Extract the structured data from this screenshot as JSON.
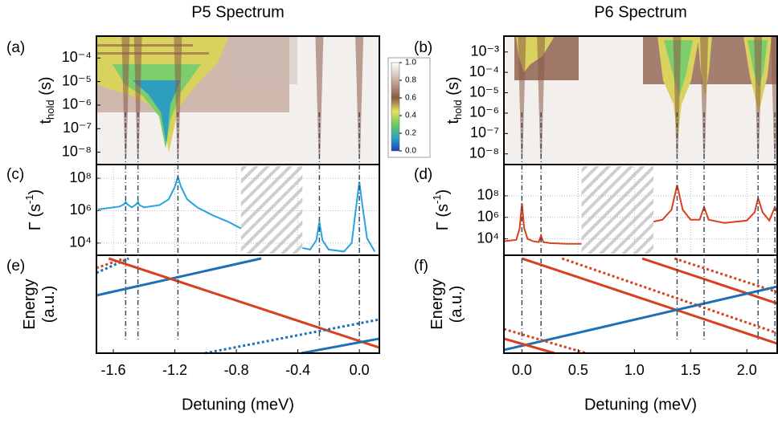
{
  "chart_data": [
    {
      "type": "heatmap",
      "title": "P5 Spectrum",
      "title_color": "#2a86c8",
      "panel": "(a)",
      "ylabel": {
        "text": "t",
        "sub": "hold",
        "rest": " (s)"
      },
      "log": true,
      "xlim": [
        -1.71,
        0.13
      ],
      "ylim": [
        3e-09,
        0.00085
      ],
      "yticks": [
        {
          "value": 1e-08,
          "label": "10⁻⁸"
        },
        {
          "value": 1e-07,
          "label": "10⁻⁷"
        },
        {
          "value": 1e-06,
          "label": "10⁻⁶"
        },
        {
          "value": 1e-05,
          "label": "10⁻⁵"
        },
        {
          "value": 0.0001,
          "label": "10⁻⁴"
        }
      ],
      "resonances": [
        -1.52,
        -1.44,
        -1.18,
        -0.26,
        0.0
      ],
      "colorbar": {
        "lim": [
          0,
          1
        ],
        "ticks": [
          {
            "value": 0,
            "label": "0.0"
          },
          0.2,
          0.4,
          0.6,
          0.8,
          {
            "value": 1,
            "label": "1.0"
          }
        ]
      }
    },
    {
      "type": "heatmap",
      "title": "P6 Spectrum",
      "title_color": "#e2541f",
      "panel": "(b)",
      "ylabel": {
        "text": "t",
        "sub": "hold",
        "rest": " (s)"
      },
      "log": true,
      "xlim": [
        -0.16,
        2.27
      ],
      "ylim": [
        3e-09,
        0.006
      ],
      "yticks": [
        {
          "value": 1e-08,
          "label": "10⁻⁸"
        },
        {
          "value": 1e-07,
          "label": "10⁻⁷"
        },
        {
          "value": 1e-06,
          "label": "10⁻⁶"
        },
        {
          "value": 1e-05,
          "label": "10⁻⁵"
        },
        {
          "value": 0.0001,
          "label": "10⁻⁴"
        },
        {
          "value": 0.001,
          "label": "10⁻³"
        }
      ],
      "resonances": [
        0.0,
        0.17,
        1.38,
        1.62,
        2.1,
        2.25
      ]
    },
    {
      "type": "line",
      "panel": "(c)",
      "color": "#25a4e0",
      "tick_color": "#2196d8",
      "ylabel": {
        "text": "Γ (s",
        "sup": "-1",
        "rest": ")"
      },
      "log": true,
      "grid": true,
      "xlim": [
        -1.71,
        0.13
      ],
      "ylim": [
        1778,
        700000000
      ],
      "xgrid": [
        -1.6,
        -1.2,
        -0.8,
        -0.4,
        0.0
      ],
      "yticks": [
        {
          "value": 10000,
          "label": "10⁴"
        },
        {
          "value": 1000000,
          "label": "10⁶"
        },
        {
          "value": 100000000,
          "label": "10⁸"
        }
      ],
      "excluded_range": [
        -0.77,
        -0.37
      ],
      "x": [
        -1.7,
        -1.62,
        -1.56,
        -1.53,
        -1.52,
        -1.51,
        -1.48,
        -1.45,
        -1.44,
        -1.43,
        -1.4,
        -1.3,
        -1.24,
        -1.2,
        -1.18,
        -1.16,
        -1.12,
        -1.05,
        -0.95,
        -0.85,
        -0.77,
        null,
        -0.37,
        -0.32,
        -0.28,
        -0.26,
        -0.24,
        -0.2,
        -0.1,
        -0.05,
        -0.02,
        0.0,
        0.02,
        0.05,
        0.1
      ],
      "values": [
        1200000,
        1500000,
        1800000,
        2500000,
        3500000,
        2500000,
        1600000,
        2500000,
        3500000,
        2200000,
        1600000,
        2200000,
        5000000,
        30000000,
        120000000,
        30000000,
        5000000,
        1500000,
        500000,
        200000,
        80000,
        null,
        5000,
        4000,
        15000,
        200000,
        15000,
        4000,
        3000,
        10000,
        2000000,
        60000000,
        2000000,
        20000,
        3000
      ]
    },
    {
      "type": "line",
      "panel": "(d)",
      "color": "#d9411e",
      "tick_color": "#e2541f",
      "ylabel": {
        "text": "Γ (s",
        "sup": "-1",
        "rest": ")"
      },
      "log": true,
      "grid": true,
      "xlim": [
        -0.16,
        2.27
      ],
      "ylim": [
        300,
        80000000000
      ],
      "xgrid": [
        0.0,
        0.5,
        1.0,
        1.5,
        2.0
      ],
      "yticks": [
        {
          "value": 10000,
          "label": "10⁴"
        },
        {
          "value": 1000000,
          "label": "10⁶"
        },
        {
          "value": 100000000,
          "label": "10⁸"
        }
      ],
      "excluded_range": [
        0.53,
        1.17
      ],
      "x": [
        -0.16,
        -0.05,
        -0.02,
        0.0,
        0.02,
        0.05,
        0.1,
        0.15,
        0.17,
        0.19,
        0.25,
        0.4,
        0.53,
        null,
        1.17,
        1.25,
        1.33,
        1.38,
        1.43,
        1.5,
        1.58,
        1.62,
        1.66,
        1.8,
        2.0,
        2.07,
        2.1,
        2.14,
        2.2,
        2.25,
        2.27
      ],
      "values": [
        6000,
        8000,
        100000,
        20000000,
        100000,
        10000,
        6000,
        5000,
        20000,
        5000,
        4000,
        3500,
        3500,
        null,
        400000,
        600000,
        5000000,
        1000000000,
        5000000,
        600000,
        600000,
        9000000,
        600000,
        300000,
        500000,
        3000000,
        60000000,
        3000000,
        500000,
        9000000,
        3000000
      ]
    },
    {
      "type": "energy",
      "panel": "(e)",
      "ylabel": [
        "Energy",
        "(a.u.)"
      ],
      "xlabel": "Detuning (meV)",
      "xlim": [
        -1.71,
        0.13
      ],
      "ylim": [
        0,
        1
      ],
      "xticks": [
        -1.6,
        -1.2,
        -0.8,
        -0.4,
        {
          "value": 0,
          "label": "0.0"
        }
      ],
      "lines": [
        {
          "color": "#1f6fb5",
          "style": "solid",
          "x": [
            -1.71,
            -0.638
          ],
          "y": [
            0.59,
            0.967
          ]
        },
        {
          "color": "#1f6fb5",
          "style": "dotted",
          "x": [
            -1.71,
            -1.5
          ],
          "y": [
            0.82,
            0.967
          ]
        },
        {
          "color": "#d9411e",
          "style": "dotted",
          "x": [
            -1.71,
            -1.53
          ],
          "y": [
            0.87,
            0.967
          ]
        },
        {
          "color": "#d9411e",
          "style": "solid",
          "x": [
            -1.63,
            0.13
          ],
          "y": [
            0.967,
            0.057
          ]
        },
        {
          "color": "#1f6fb5",
          "style": "dotted",
          "x": [
            -1.004,
            0.13
          ],
          "y": [
            0,
            0.344
          ]
        },
        {
          "color": "#1f6fb5",
          "style": "solid",
          "x": [
            -0.377,
            0.13
          ],
          "y": [
            0,
            0.148
          ]
        }
      ]
    },
    {
      "type": "energy",
      "panel": "(f)",
      "ylabel": [
        "Energy",
        "(a.u.)"
      ],
      "xlabel": "Detuning (meV)",
      "xlim": [
        -0.16,
        2.27
      ],
      "ylim": [
        0,
        1
      ],
      "xticks": [
        {
          "value": 0,
          "label": "0.0"
        },
        0.5,
        {
          "value": 1,
          "label": "1.0"
        },
        1.5,
        {
          "value": 2,
          "label": "2.0"
        }
      ],
      "lines": [
        {
          "color": "#d9411e",
          "style": "solid",
          "x": [
            0.0,
            2.27
          ],
          "y": [
            0.967,
            0.098
          ]
        },
        {
          "color": "#d9411e",
          "style": "dotted",
          "x": [
            0.357,
            2.27
          ],
          "y": [
            0.967,
            0.205
          ]
        },
        {
          "color": "#d9411e",
          "style": "solid",
          "x": [
            1.07,
            2.27
          ],
          "y": [
            0.967,
            0.508
          ]
        },
        {
          "color": "#d9411e",
          "style": "dotted",
          "x": [
            1.357,
            2.27
          ],
          "y": [
            0.967,
            0.623
          ]
        },
        {
          "color": "#1f6fb5",
          "style": "solid",
          "x": [
            -0.16,
            2.27
          ],
          "y": [
            0.033,
            0.68
          ]
        },
        {
          "color": "#d9411e",
          "style": "solid",
          "x": [
            -0.16,
            0.29
          ],
          "y": [
            0.148,
            0
          ]
        },
        {
          "color": "#d9411e",
          "style": "dotted",
          "x": [
            -0.16,
            0.57
          ],
          "y": [
            0.246,
            0
          ]
        }
      ]
    }
  ]
}
